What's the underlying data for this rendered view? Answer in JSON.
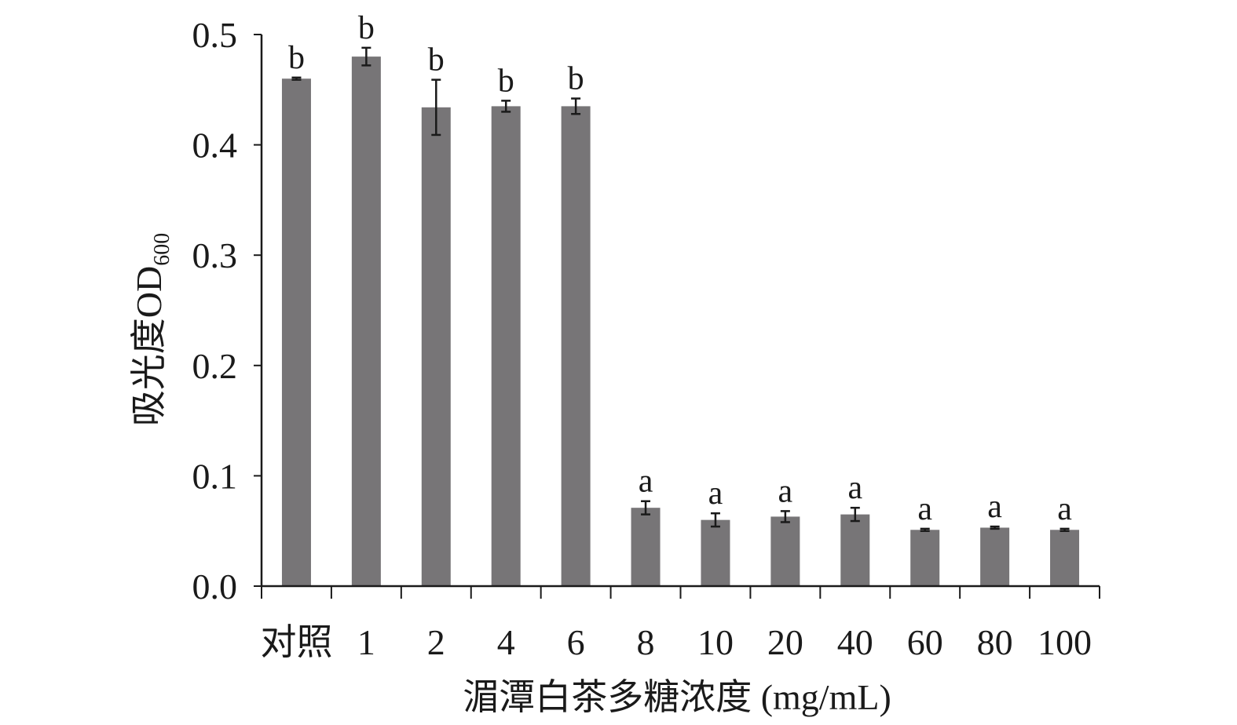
{
  "chart_data": {
    "type": "bar",
    "categories": [
      "对照",
      "1",
      "2",
      "4",
      "6",
      "8",
      "10",
      "20",
      "40",
      "60",
      "80",
      "100"
    ],
    "values": [
      0.46,
      0.48,
      0.434,
      0.435,
      0.435,
      0.071,
      0.06,
      0.063,
      0.065,
      0.051,
      0.053,
      0.051
    ],
    "errors": [
      0.001,
      0.008,
      0.025,
      0.005,
      0.007,
      0.006,
      0.006,
      0.005,
      0.006,
      0.001,
      0.001,
      0.001
    ],
    "significance": [
      "b",
      "b",
      "b",
      "b",
      "b",
      "a",
      "a",
      "a",
      "a",
      "a",
      "a",
      "a"
    ],
    "xlabel": "湄潭白茶多糖浓度 (mg/mL)",
    "ylabel": "吸光度OD",
    "ylabel_subscript": "600",
    "ylim": [
      0,
      0.5
    ],
    "yticks": [
      "0.0",
      "0.1",
      "0.2",
      "0.3",
      "0.4",
      "0.5"
    ],
    "ytick_values": [
      0.0,
      0.1,
      0.2,
      0.3,
      0.4,
      0.5
    ],
    "grid": false,
    "legend": "none",
    "bar_color": "#777577",
    "axis_color": "#1a1a1a"
  }
}
